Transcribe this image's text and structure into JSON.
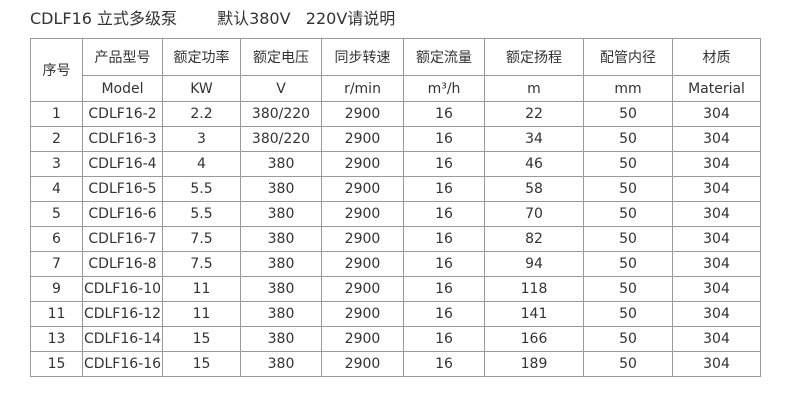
{
  "header": {
    "title": "CDLF16 立式多级泵",
    "note": "默认380V   220V请说明"
  },
  "table": {
    "head_cn": [
      "序号",
      "产品型号",
      "额定功率",
      "额定电压",
      "同步转速",
      "额定流量",
      "额定扬程",
      "配管内径",
      "材质"
    ],
    "head_en": [
      "Model",
      "KW",
      "V",
      "r/min",
      "m³/h",
      "m",
      "mm",
      "Material"
    ],
    "rows": [
      [
        "1",
        "CDLF16-2",
        "2.2",
        "380/220",
        "2900",
        "16",
        "22",
        "50",
        "304"
      ],
      [
        "2",
        "CDLF16-3",
        "3",
        "380/220",
        "2900",
        "16",
        "34",
        "50",
        "304"
      ],
      [
        "3",
        "CDLF16-4",
        "4",
        "380",
        "2900",
        "16",
        "46",
        "50",
        "304"
      ],
      [
        "4",
        "CDLF16-5",
        "5.5",
        "380",
        "2900",
        "16",
        "58",
        "50",
        "304"
      ],
      [
        "5",
        "CDLF16-6",
        "5.5",
        "380",
        "2900",
        "16",
        "70",
        "50",
        "304"
      ],
      [
        "6",
        "CDLF16-7",
        "7.5",
        "380",
        "2900",
        "16",
        "82",
        "50",
        "304"
      ],
      [
        "7",
        "CDLF16-8",
        "7.5",
        "380",
        "2900",
        "16",
        "94",
        "50",
        "304"
      ],
      [
        "9",
        "CDLF16-10",
        "11",
        "380",
        "2900",
        "16",
        "118",
        "50",
        "304"
      ],
      [
        "11",
        "CDLF16-12",
        "11",
        "380",
        "2900",
        "16",
        "141",
        "50",
        "304"
      ],
      [
        "13",
        "CDLF16-14",
        "15",
        "380",
        "2900",
        "16",
        "166",
        "50",
        "304"
      ],
      [
        "15",
        "CDLF16-16",
        "15",
        "380",
        "2900",
        "16",
        "189",
        "50",
        "304"
      ]
    ]
  }
}
